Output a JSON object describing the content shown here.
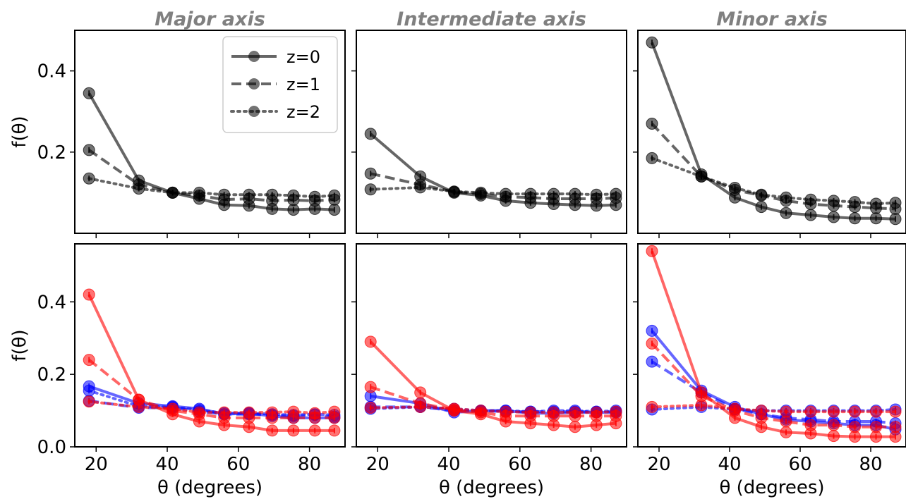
{
  "colors": {
    "black": "#000000",
    "red": "#ff0000",
    "blue": "#0000ff",
    "title": "#808080"
  },
  "chart_data": {
    "type": "line",
    "panel_titles": [
      "Major axis",
      "Intermediate axis",
      "Minor axis"
    ],
    "ylabel": "f(θ)",
    "xlabel": "θ (degrees)",
    "xlim": [
      14,
      90
    ],
    "xticks": [
      20,
      40,
      60,
      80
    ],
    "xtick_labels": [
      "20",
      "40",
      "60",
      "80"
    ],
    "rows": [
      {
        "ylim": [
          0.0,
          0.5
        ],
        "yticks": [
          0.2,
          0.4
        ],
        "ytick_labels": [
          "0.2",
          "0.4"
        ]
      },
      {
        "ylim": [
          0.0,
          0.56
        ],
        "yticks": [
          0.0,
          0.2,
          0.4
        ],
        "ytick_labels": [
          "0.0",
          "0.2",
          "0.4"
        ]
      }
    ],
    "legend": {
      "placement": "upper right of top-left panel",
      "entries": [
        {
          "label": "z=0",
          "style": "solid"
        },
        {
          "label": "z=1",
          "style": "dashed"
        },
        {
          "label": "z=2",
          "style": "dotted"
        }
      ]
    },
    "x": [
      18,
      32,
      41.5,
      49,
      56,
      63,
      69.5,
      75.5,
      81.5,
      87
    ],
    "panels": [
      {
        "row": 0,
        "col": 0,
        "series": [
          {
            "color": "#000000",
            "style": "solid",
            "values": [
              0.345,
              0.13,
              0.1,
              0.085,
              0.07,
              0.068,
              0.06,
              0.058,
              0.06,
              0.058
            ]
          },
          {
            "color": "#000000",
            "style": "dashed",
            "values": [
              0.205,
              0.12,
              0.1,
              0.093,
              0.083,
              0.085,
              0.08,
              0.082,
              0.08,
              0.083
            ]
          },
          {
            "color": "#000000",
            "style": "dotted",
            "values": [
              0.135,
              0.11,
              0.1,
              0.1,
              0.095,
              0.095,
              0.095,
              0.093,
              0.09,
              0.093
            ]
          }
        ]
      },
      {
        "row": 0,
        "col": 1,
        "series": [
          {
            "color": "#000000",
            "style": "solid",
            "values": [
              0.245,
              0.14,
              0.1,
              0.093,
              0.08,
              0.075,
              0.072,
              0.07,
              0.068,
              0.07
            ]
          },
          {
            "color": "#000000",
            "style": "dashed",
            "values": [
              0.147,
              0.12,
              0.102,
              0.097,
              0.09,
              0.088,
              0.085,
              0.085,
              0.085,
              0.087
            ]
          },
          {
            "color": "#000000",
            "style": "dotted",
            "values": [
              0.108,
              0.113,
              0.103,
              0.1,
              0.097,
              0.097,
              0.097,
              0.097,
              0.095,
              0.097
            ]
          }
        ]
      },
      {
        "row": 0,
        "col": 2,
        "series": [
          {
            "color": "#000000",
            "style": "solid",
            "values": [
              0.47,
              0.145,
              0.088,
              0.065,
              0.05,
              0.045,
              0.04,
              0.037,
              0.037,
              0.035
            ]
          },
          {
            "color": "#000000",
            "style": "dashed",
            "values": [
              0.27,
              0.14,
              0.107,
              0.093,
              0.08,
              0.072,
              0.068,
              0.065,
              0.062,
              0.06
            ]
          },
          {
            "color": "#000000",
            "style": "dotted",
            "values": [
              0.185,
              0.14,
              0.112,
              0.095,
              0.088,
              0.083,
              0.08,
              0.077,
              0.073,
              0.075
            ]
          }
        ]
      },
      {
        "row": 1,
        "col": 0,
        "series": [
          {
            "color": "#0000ff",
            "style": "solid",
            "values": [
              0.167,
              0.12,
              0.112,
              0.105,
              0.09,
              0.093,
              0.085,
              0.08,
              0.08,
              0.08
            ]
          },
          {
            "color": "#0000ff",
            "style": "dashed",
            "values": [
              0.127,
              0.108,
              0.108,
              0.098,
              0.09,
              0.09,
              0.088,
              0.085,
              0.088,
              0.083
            ]
          },
          {
            "color": "#0000ff",
            "style": "dotted",
            "values": [
              0.155,
              0.112,
              0.11,
              0.102,
              0.093,
              0.093,
              0.09,
              0.088,
              0.09,
              0.088
            ]
          },
          {
            "color": "#ff0000",
            "style": "solid",
            "values": [
              0.42,
              0.13,
              0.09,
              0.07,
              0.06,
              0.055,
              0.045,
              0.045,
              0.045,
              0.045
            ]
          },
          {
            "color": "#ff0000",
            "style": "dashed",
            "values": [
              0.24,
              0.13,
              0.1,
              0.09,
              0.08,
              0.08,
              0.08,
              0.08,
              0.08,
              0.08
            ]
          },
          {
            "color": "#ff0000",
            "style": "dotted",
            "values": [
              0.125,
              0.11,
              0.105,
              0.095,
              0.095,
              0.095,
              0.095,
              0.097,
              0.093,
              0.097
            ]
          }
        ]
      },
      {
        "row": 1,
        "col": 1,
        "series": [
          {
            "color": "#0000ff",
            "style": "solid",
            "values": [
              0.14,
              0.12,
              0.095,
              0.1,
              0.1,
              0.093,
              0.093,
              0.095,
              0.095,
              0.095
            ]
          },
          {
            "color": "#0000ff",
            "style": "dashed",
            "values": [
              0.11,
              0.11,
              0.1,
              0.1,
              0.097,
              0.097,
              0.097,
              0.097,
              0.097,
              0.097
            ]
          },
          {
            "color": "#0000ff",
            "style": "dotted",
            "values": [
              0.105,
              0.11,
              0.105,
              0.1,
              0.1,
              0.097,
              0.1,
              0.1,
              0.097,
              0.1
            ]
          },
          {
            "color": "#ff0000",
            "style": "solid",
            "values": [
              0.29,
              0.15,
              0.1,
              0.09,
              0.07,
              0.065,
              0.06,
              0.055,
              0.06,
              0.065
            ]
          },
          {
            "color": "#ff0000",
            "style": "dashed",
            "values": [
              0.165,
              0.12,
              0.102,
              0.095,
              0.085,
              0.085,
              0.085,
              0.085,
              0.085,
              0.085
            ]
          },
          {
            "color": "#ff0000",
            "style": "dotted",
            "values": [
              0.108,
              0.11,
              0.105,
              0.1,
              0.097,
              0.095,
              0.095,
              0.095,
              0.095,
              0.097
            ]
          }
        ]
      },
      {
        "row": 1,
        "col": 2,
        "series": [
          {
            "color": "#0000ff",
            "style": "solid",
            "values": [
              0.32,
              0.155,
              0.11,
              0.09,
              0.075,
              0.07,
              0.065,
              0.06,
              0.06,
              0.048
            ]
          },
          {
            "color": "#0000ff",
            "style": "dashed",
            "values": [
              0.235,
              0.15,
              0.105,
              0.09,
              0.08,
              0.075,
              0.07,
              0.07,
              0.07,
              0.065
            ]
          },
          {
            "color": "#0000ff",
            "style": "dotted",
            "values": [
              0.103,
              0.11,
              0.103,
              0.1,
              0.1,
              0.1,
              0.1,
              0.1,
              0.1,
              0.103
            ]
          },
          {
            "color": "#ff0000",
            "style": "solid",
            "values": [
              0.54,
              0.15,
              0.08,
              0.055,
              0.04,
              0.037,
              0.03,
              0.028,
              0.028,
              0.028
            ]
          },
          {
            "color": "#ff0000",
            "style": "dashed",
            "values": [
              0.285,
              0.14,
              0.1,
              0.08,
              0.07,
              0.06,
              0.06,
              0.055,
              0.055,
              0.055
            ]
          },
          {
            "color": "#ff0000",
            "style": "dotted",
            "values": [
              0.11,
              0.115,
              0.105,
              0.1,
              0.097,
              0.097,
              0.097,
              0.097,
              0.097,
              0.097
            ]
          }
        ]
      }
    ]
  }
}
